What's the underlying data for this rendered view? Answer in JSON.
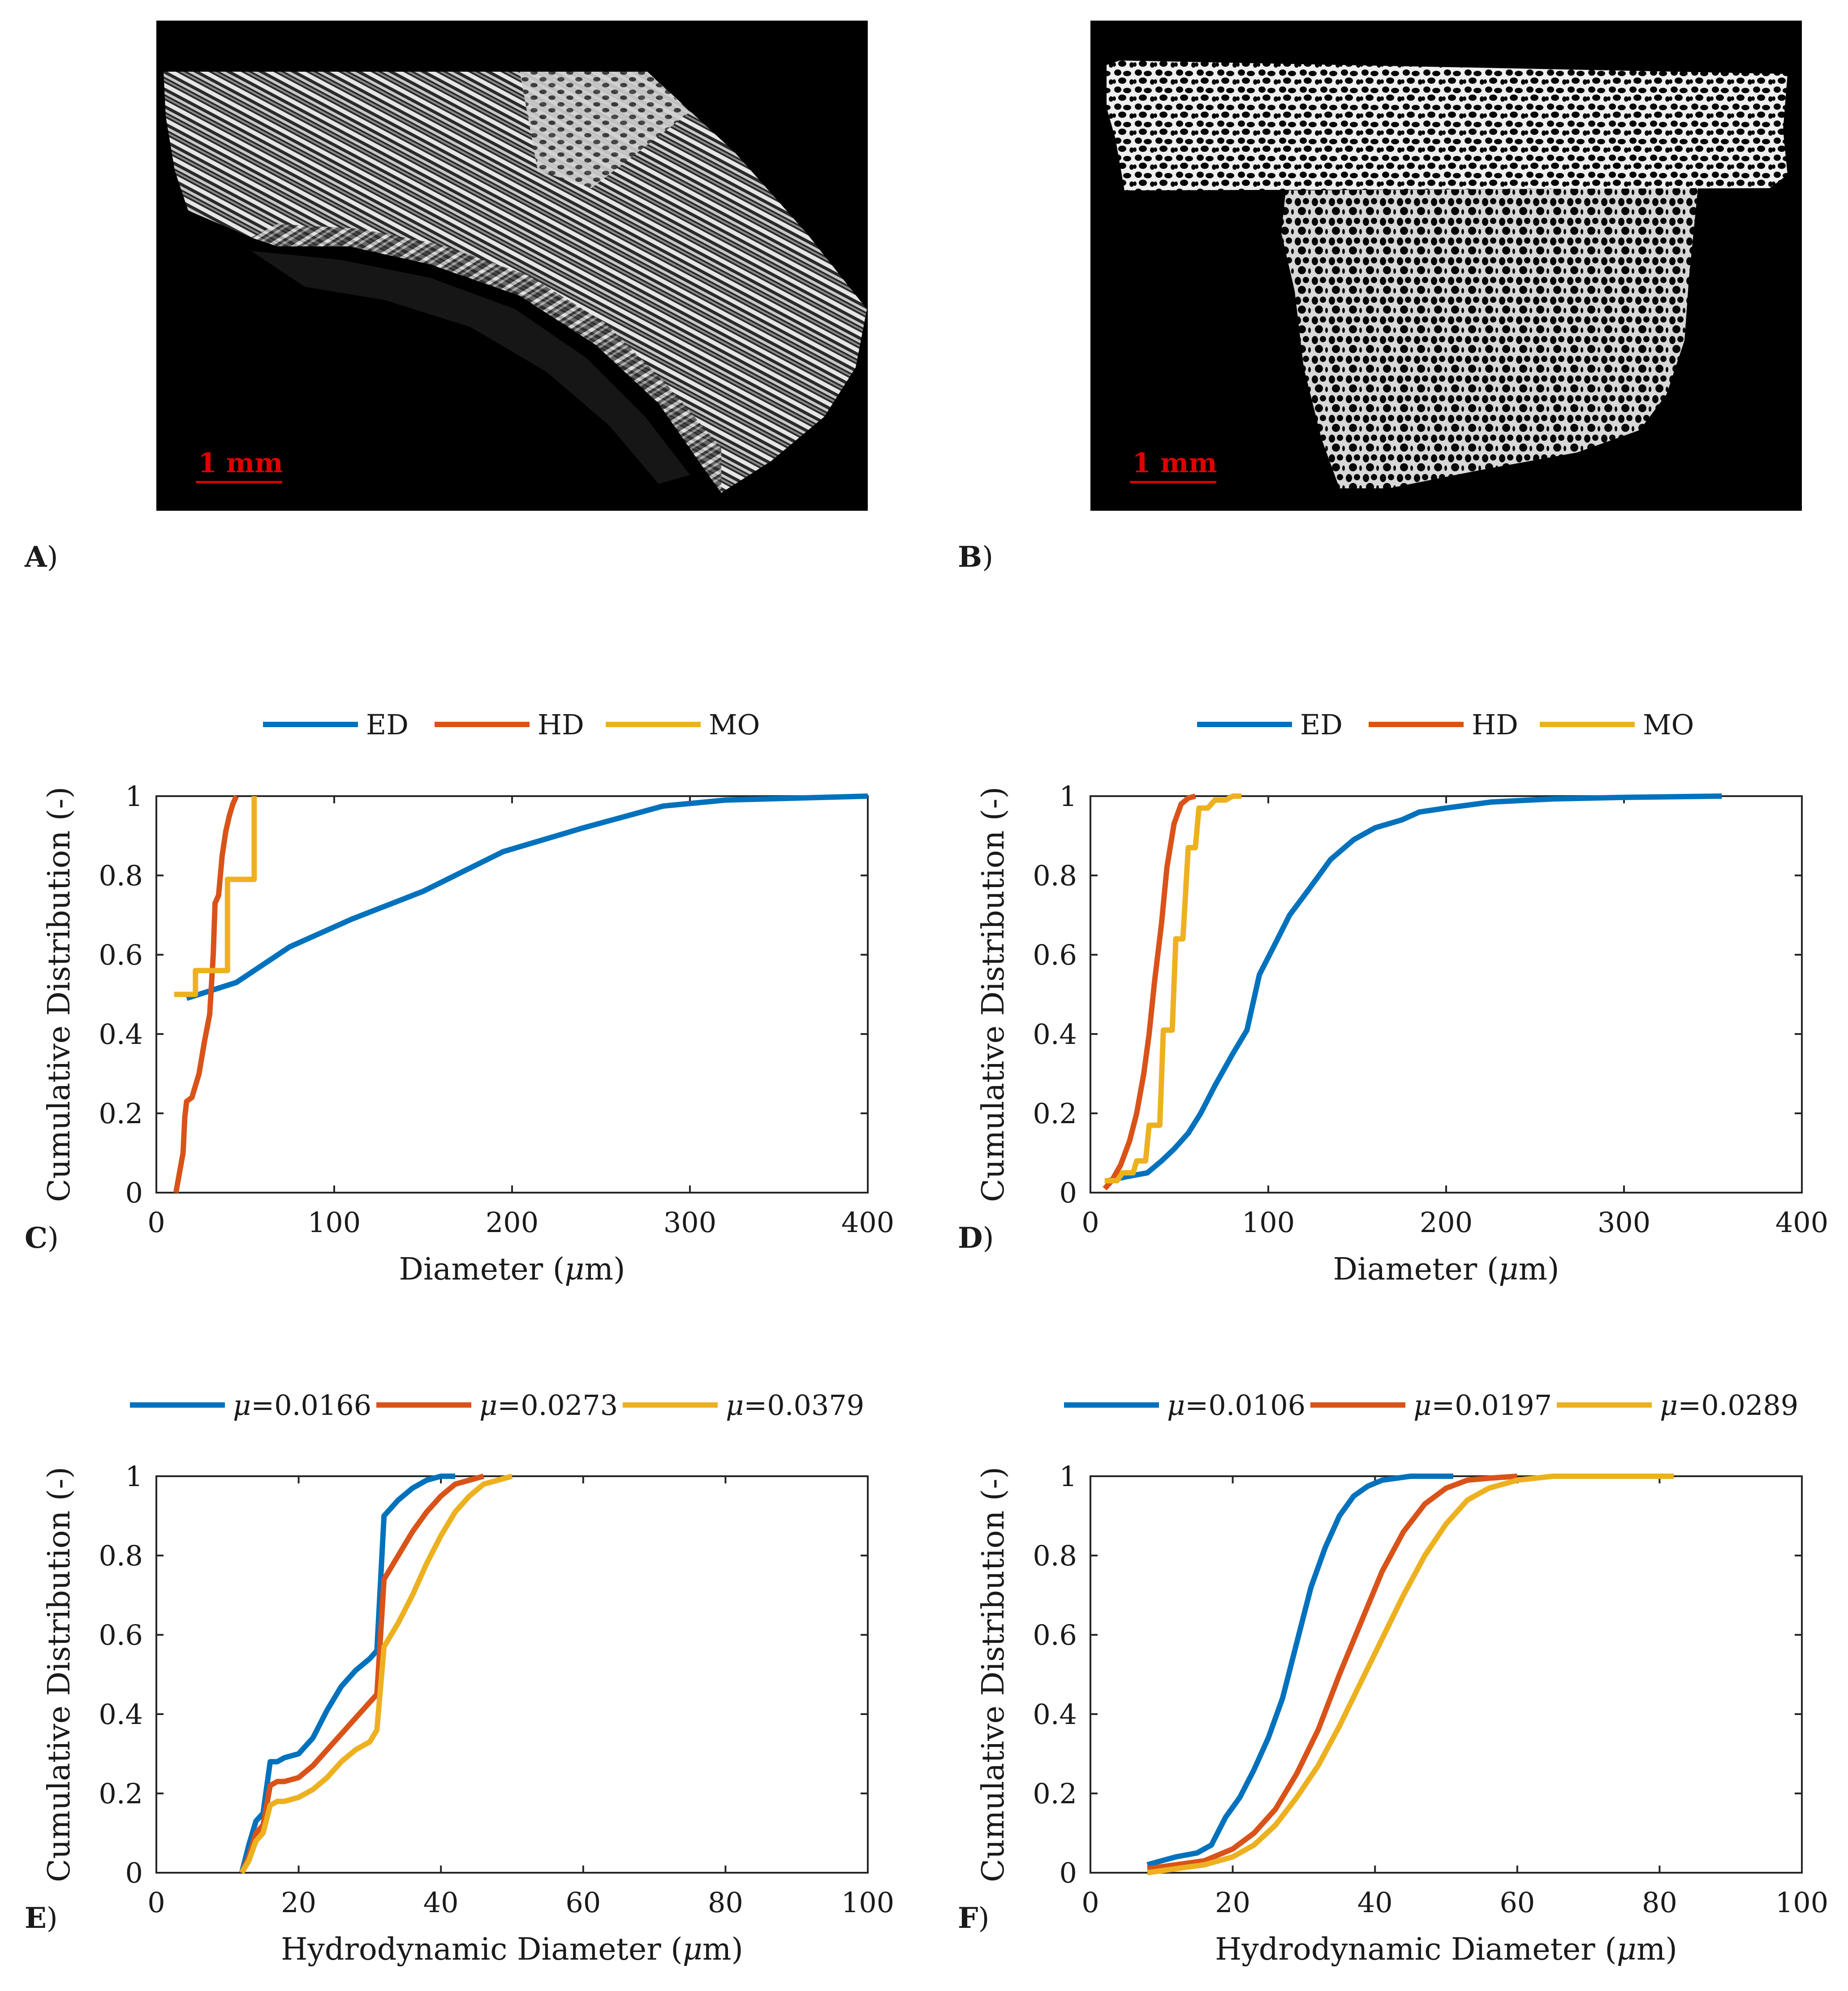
{
  "images": [
    {
      "panel_label": "A",
      "scalebar_label": "1 mm"
    },
    {
      "panel_label": "B",
      "scalebar_label": "1 mm"
    }
  ],
  "colors": {
    "blue": "#0072BD",
    "red": "#D95319",
    "yellow": "#EDB120",
    "axes": "#262626",
    "text": "#1a1a1a",
    "scalebar": "#e00000",
    "image_bg": "#000000"
  },
  "chart_data": [
    {
      "panel_label": "C",
      "type": "line",
      "xlabel": "Diameter (μm)",
      "ylabel": "Cumulative Distribution (-)",
      "xlim": [
        0,
        400
      ],
      "ylim": [
        0,
        1
      ],
      "xticks": [
        "0",
        "100",
        "200",
        "300",
        "400"
      ],
      "yticks": [
        "0",
        "0.2",
        "0.4",
        "0.6",
        "0.8",
        "1"
      ],
      "series": [
        {
          "name": "ED",
          "color": "blue",
          "x": [
            17,
            45,
            75,
            110,
            150,
            195,
            240,
            285,
            320,
            400
          ],
          "y": [
            0.49,
            0.53,
            0.62,
            0.69,
            0.76,
            0.86,
            0.92,
            0.975,
            0.99,
            1.0
          ]
        },
        {
          "name": "HD",
          "color": "red",
          "x": [
            11,
            13,
            15,
            16,
            17,
            20,
            24,
            27,
            30,
            32,
            33,
            35,
            36,
            37,
            39,
            41,
            43,
            45
          ],
          "y": [
            0,
            0.05,
            0.1,
            0.19,
            0.23,
            0.24,
            0.3,
            0.38,
            0.45,
            0.6,
            0.73,
            0.75,
            0.8,
            0.85,
            0.91,
            0.95,
            0.98,
            1.0
          ]
        },
        {
          "name": "MO",
          "color": "yellow",
          "x": [
            10,
            22,
            22,
            32,
            32,
            40,
            40,
            55,
            55
          ],
          "y": [
            0.5,
            0.5,
            0.56,
            0.56,
            0.56,
            0.56,
            0.79,
            0.79,
            1.0
          ]
        }
      ]
    },
    {
      "panel_label": "D",
      "type": "line",
      "xlabel": "Diameter (μm)",
      "ylabel": "Cumulative Distribution (-)",
      "xlim": [
        0,
        400
      ],
      "ylim": [
        0,
        1
      ],
      "xticks": [
        "0",
        "100",
        "200",
        "300",
        "400"
      ],
      "yticks": [
        "0",
        "0.2",
        "0.4",
        "0.6",
        "0.8",
        "1"
      ],
      "series": [
        {
          "name": "ED",
          "color": "blue",
          "x": [
            10,
            20,
            32,
            40,
            47,
            55,
            62,
            70,
            80,
            88,
            95,
            103,
            112,
            122,
            135,
            148,
            160,
            175,
            185,
            200,
            225,
            260,
            300,
            355
          ],
          "y": [
            0.03,
            0.04,
            0.05,
            0.08,
            0.11,
            0.15,
            0.2,
            0.27,
            0.35,
            0.41,
            0.55,
            0.62,
            0.7,
            0.76,
            0.84,
            0.89,
            0.92,
            0.94,
            0.96,
            0.97,
            0.985,
            0.993,
            0.997,
            1.0
          ]
        },
        {
          "name": "HD",
          "color": "red",
          "x": [
            8,
            12,
            17,
            22,
            26,
            30,
            33,
            36,
            40,
            43,
            47,
            51,
            55,
            59
          ],
          "y": [
            0.01,
            0.03,
            0.07,
            0.13,
            0.2,
            0.3,
            0.4,
            0.53,
            0.68,
            0.82,
            0.93,
            0.98,
            0.995,
            1.0
          ]
        },
        {
          "name": "MO",
          "color": "yellow",
          "x": [
            8,
            15,
            18,
            24,
            26,
            31,
            33,
            39,
            41,
            46,
            48,
            52,
            55,
            59,
            61,
            66,
            70,
            76,
            80,
            85
          ],
          "y": [
            0.03,
            0.03,
            0.05,
            0.05,
            0.08,
            0.08,
            0.17,
            0.17,
            0.41,
            0.41,
            0.64,
            0.64,
            0.87,
            0.87,
            0.97,
            0.97,
            0.99,
            0.99,
            1.0,
            1.0
          ]
        }
      ]
    },
    {
      "panel_label": "E",
      "type": "line",
      "xlabel": "Hydrodynamic Diameter (μm)",
      "ylabel": "Cumulative Distribution (-)",
      "xlim": [
        0,
        100
      ],
      "ylim": [
        0,
        1
      ],
      "xticks": [
        "0",
        "20",
        "40",
        "60",
        "80",
        "100"
      ],
      "yticks": [
        "0",
        "0.2",
        "0.4",
        "0.6",
        "0.8",
        "1"
      ],
      "series": [
        {
          "name": "μ=0.0166",
          "color": "blue",
          "x": [
            12,
            13,
            14,
            15,
            16,
            17,
            18,
            20,
            22,
            24,
            26,
            28,
            30,
            31,
            32,
            34,
            36,
            38,
            40,
            42
          ],
          "y": [
            0,
            0.07,
            0.13,
            0.15,
            0.28,
            0.28,
            0.29,
            0.3,
            0.34,
            0.41,
            0.47,
            0.51,
            0.54,
            0.56,
            0.9,
            0.94,
            0.97,
            0.99,
            1.0,
            1.0
          ]
        },
        {
          "name": "μ=0.0273",
          "color": "red",
          "x": [
            12,
            13,
            14,
            15,
            16,
            17,
            18,
            20,
            22,
            24,
            26,
            28,
            30,
            31,
            32,
            34,
            36,
            38,
            40,
            42,
            44,
            46
          ],
          "y": [
            0,
            0.04,
            0.1,
            0.12,
            0.22,
            0.23,
            0.23,
            0.24,
            0.27,
            0.31,
            0.35,
            0.39,
            0.43,
            0.45,
            0.74,
            0.8,
            0.86,
            0.91,
            0.95,
            0.98,
            0.99,
            1.0
          ]
        },
        {
          "name": "μ=0.0379",
          "color": "yellow",
          "x": [
            12,
            13,
            14,
            15,
            16,
            17,
            18,
            20,
            22,
            24,
            26,
            28,
            30,
            31,
            32,
            34,
            36,
            38,
            40,
            42,
            44,
            46,
            48,
            50
          ],
          "y": [
            0,
            0.03,
            0.08,
            0.1,
            0.17,
            0.18,
            0.18,
            0.19,
            0.21,
            0.24,
            0.28,
            0.31,
            0.33,
            0.36,
            0.57,
            0.63,
            0.7,
            0.78,
            0.85,
            0.91,
            0.95,
            0.98,
            0.99,
            1.0
          ]
        }
      ]
    },
    {
      "panel_label": "F",
      "type": "line",
      "xlabel": "Hydrodynamic Diameter (μm)",
      "ylabel": "Cumulative Distribution (-)",
      "xlim": [
        0,
        100
      ],
      "ylim": [
        0,
        1
      ],
      "xticks": [
        "0",
        "20",
        "40",
        "60",
        "80",
        "100"
      ],
      "yticks": [
        "0",
        "0.2",
        "0.4",
        "0.6",
        "0.8",
        "1"
      ],
      "series": [
        {
          "name": "μ=0.0106",
          "color": "blue",
          "x": [
            8,
            10,
            12,
            15,
            17,
            19,
            21,
            23,
            25,
            27,
            29,
            31,
            33,
            35,
            37,
            39,
            41,
            43,
            45,
            47,
            51
          ],
          "y": [
            0.02,
            0.03,
            0.04,
            0.05,
            0.07,
            0.14,
            0.19,
            0.26,
            0.34,
            0.44,
            0.58,
            0.72,
            0.82,
            0.9,
            0.95,
            0.975,
            0.99,
            0.995,
            1.0,
            1.0,
            1.0
          ]
        },
        {
          "name": "μ=0.0197",
          "color": "red",
          "x": [
            8,
            12,
            16,
            20,
            23,
            26,
            29,
            32,
            35,
            38,
            41,
            44,
            47,
            50,
            53,
            56,
            60
          ],
          "y": [
            0.01,
            0.02,
            0.03,
            0.06,
            0.1,
            0.16,
            0.25,
            0.36,
            0.5,
            0.63,
            0.76,
            0.86,
            0.93,
            0.97,
            0.99,
            0.995,
            1.0
          ]
        },
        {
          "name": "μ=0.0289",
          "color": "yellow",
          "x": [
            8,
            12,
            16,
            20,
            23,
            26,
            29,
            32,
            35,
            38,
            41,
            44,
            47,
            50,
            53,
            56,
            60,
            65,
            70,
            82
          ],
          "y": [
            0.0,
            0.01,
            0.02,
            0.04,
            0.07,
            0.12,
            0.19,
            0.27,
            0.37,
            0.48,
            0.59,
            0.7,
            0.8,
            0.88,
            0.94,
            0.97,
            0.99,
            1.0,
            1.0,
            1.0
          ]
        }
      ]
    }
  ]
}
